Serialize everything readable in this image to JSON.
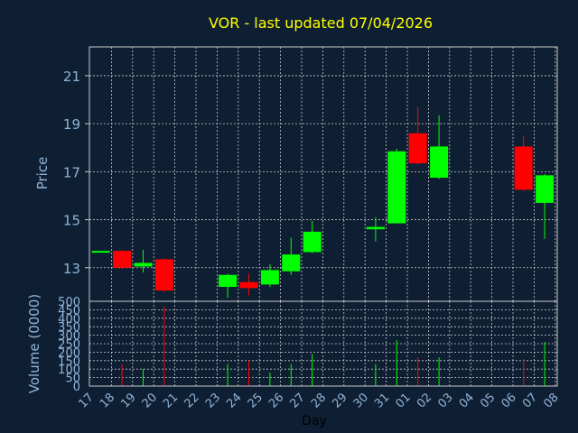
{
  "colors": {
    "background": "#0f1f33",
    "plot_background": "#0f1f33",
    "grid": "#c8c8c8",
    "frame": "#c8c8c8",
    "up": "#00ff00",
    "down": "#ff0000",
    "title": "#ffff00",
    "tick": "#8fb4d8"
  },
  "chart_data": {
    "type": "candlestick",
    "title": "VOR - last updated 07/04/2026",
    "ylabel": "Price",
    "volume_label": "Volume (0000)",
    "xlabel": "Day",
    "ylim": [
      11.6,
      22.2
    ],
    "yticks": [
      13,
      15,
      17,
      19,
      21
    ],
    "volume_ylim": [
      0,
      500
    ],
    "volume_ticks": [
      0,
      50,
      100,
      150,
      200,
      250,
      300,
      350,
      400,
      450,
      500
    ],
    "grid": true,
    "x_labels": [
      "17",
      "18",
      "19",
      "20",
      "21",
      "22",
      "23",
      "24",
      "25",
      "26",
      "27",
      "28",
      "29",
      "30",
      "31",
      "01",
      "02",
      "03",
      "04",
      "05",
      "06",
      "07",
      "08"
    ],
    "candles": [
      {
        "i": 0,
        "open": 13.7,
        "close": 13.7,
        "high": 13.7,
        "low": 13.7,
        "volume": 0
      },
      {
        "i": 1,
        "open": 13.7,
        "close": 13.0,
        "high": 13.75,
        "low": 12.95,
        "volume": 130
      },
      {
        "i": 2,
        "open": 13.05,
        "close": 13.2,
        "high": 13.75,
        "low": 12.8,
        "volume": 100
      },
      {
        "i": 3,
        "open": 13.35,
        "close": 12.05,
        "high": 13.4,
        "low": 12.0,
        "volume": 470
      },
      {
        "i": 6,
        "open": 12.2,
        "close": 12.7,
        "high": 12.75,
        "low": 11.75,
        "volume": 130
      },
      {
        "i": 7,
        "open": 12.4,
        "close": 12.15,
        "high": 12.75,
        "low": 11.85,
        "volume": 150
      },
      {
        "i": 8,
        "open": 12.3,
        "close": 12.9,
        "high": 13.15,
        "low": 12.2,
        "volume": 80
      },
      {
        "i": 9,
        "open": 12.85,
        "close": 13.55,
        "high": 14.25,
        "low": 12.7,
        "volume": 130
      },
      {
        "i": 10,
        "open": 13.65,
        "close": 14.5,
        "high": 14.95,
        "low": 13.6,
        "volume": 190
      },
      {
        "i": 13,
        "open": 14.6,
        "close": 14.7,
        "high": 15.1,
        "low": 14.1,
        "volume": 130
      },
      {
        "i": 14,
        "open": 14.85,
        "close": 17.85,
        "high": 17.95,
        "low": 14.85,
        "volume": 270
      },
      {
        "i": 15,
        "open": 18.6,
        "close": 17.35,
        "high": 19.7,
        "low": 17.3,
        "volume": 170
      },
      {
        "i": 16,
        "open": 16.75,
        "close": 18.05,
        "high": 19.35,
        "low": 16.7,
        "volume": 170
      },
      {
        "i": 20,
        "open": 18.05,
        "close": 16.25,
        "high": 18.5,
        "low": 16.2,
        "volume": 160
      },
      {
        "i": 21,
        "open": 15.7,
        "close": 16.85,
        "high": 16.9,
        "low": 14.2,
        "volume": 260
      }
    ]
  }
}
